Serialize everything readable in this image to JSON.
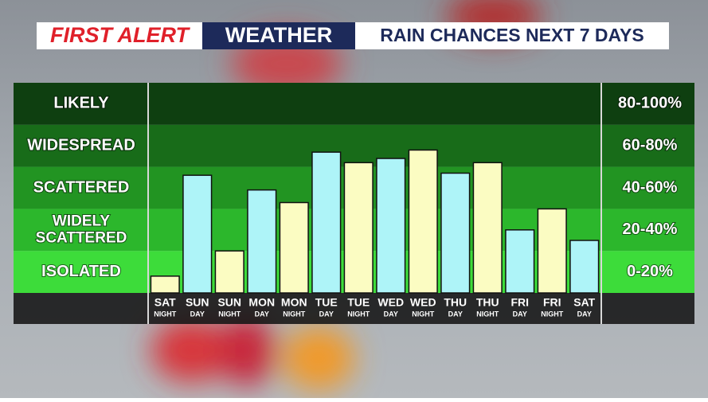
{
  "chart_data": {
    "type": "bar",
    "title_parts": [
      "FIRST ALERT",
      "WEATHER",
      "RAIN CHANCES NEXT 7 DAYS"
    ],
    "categories": [
      "SAT",
      "SUN",
      "SUN",
      "MON",
      "MON",
      "TUE",
      "TUE",
      "WED",
      "WED",
      "THU",
      "THU",
      "FRI",
      "FRI",
      "SAT"
    ],
    "sub_categories": [
      "NIGHT",
      "DAY",
      "NIGHT",
      "DAY",
      "NIGHT",
      "DAY",
      "NIGHT",
      "DAY",
      "NIGHT",
      "DAY",
      "NIGHT",
      "DAY",
      "NIGHT",
      "DAY"
    ],
    "values": [
      8,
      56,
      20,
      49,
      43,
      67,
      62,
      64,
      68,
      57,
      62,
      30,
      40,
      25
    ],
    "colors": [
      "#fbfcc2",
      "#aef4f8",
      "#fbfcc2",
      "#aef4f8",
      "#fbfcc2",
      "#aef4f8",
      "#fbfcc2",
      "#aef4f8",
      "#fbfcc2",
      "#aef4f8",
      "#fbfcc2",
      "#aef4f8",
      "#fbfcc2",
      "#aef4f8"
    ],
    "ylim": [
      0,
      100
    ],
    "bands": [
      {
        "from": 80,
        "to": 100,
        "label": "LIKELY",
        "range_label": "80-100%",
        "color": "#0e3f10"
      },
      {
        "from": 60,
        "to": 80,
        "label": "WIDESPREAD",
        "range_label": "60-80%",
        "color": "#186c19"
      },
      {
        "from": 40,
        "to": 60,
        "label": "SCATTERED",
        "range_label": "40-60%",
        "color": "#229422"
      },
      {
        "from": 20,
        "to": 40,
        "label": "WIDELY SCATTERED",
        "range_label": "20-40%",
        "color": "#2cb72c"
      },
      {
        "from": 0,
        "to": 20,
        "label": "ISOLATED",
        "range_label": "0-20%",
        "color": "#3ddc3a"
      }
    ]
  }
}
